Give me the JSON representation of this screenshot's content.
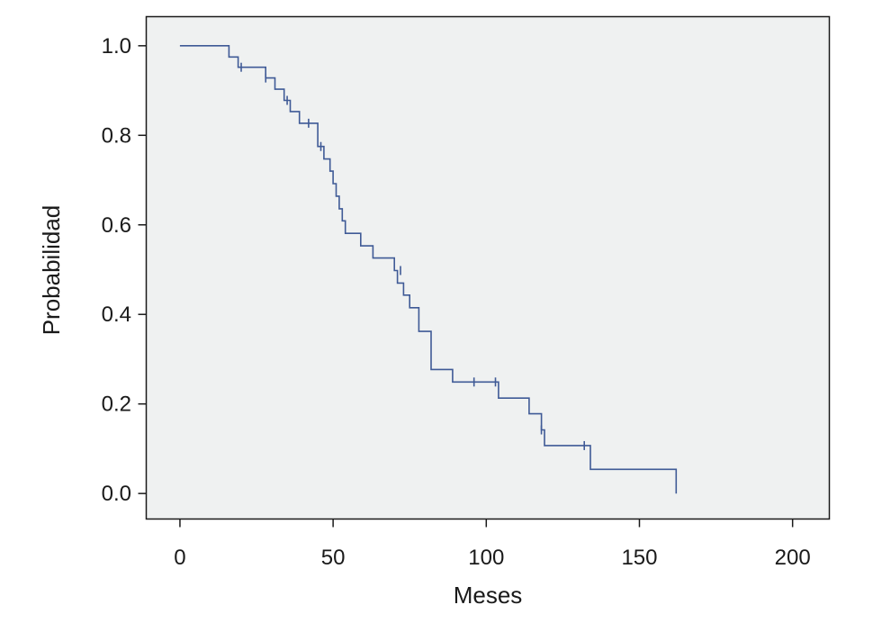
{
  "chart_data": {
    "type": "line",
    "title": "",
    "xlabel": "Meses",
    "ylabel": "Probabilidad",
    "xlim": [
      -11,
      212
    ],
    "ylim": [
      -0.057,
      1.065
    ],
    "xticks": [
      0,
      50,
      100,
      150,
      200
    ],
    "xtick_labels": [
      "0",
      "50",
      "100",
      "150",
      "200"
    ],
    "yticks": [
      0.0,
      0.2,
      0.4,
      0.6,
      0.8,
      1.0
    ],
    "ytick_labels": [
      "0.0",
      "0.2",
      "0.4",
      "0.6",
      "0.8",
      "1.0"
    ],
    "grid": false,
    "colors": {
      "plot_bg": "#eff1f1",
      "line": "#3f5a96",
      "axis": "#1a1a1a"
    },
    "series": [
      {
        "steps": [
          [
            0,
            1.0
          ],
          [
            16,
            0.975
          ],
          [
            19,
            0.952
          ],
          [
            28,
            0.928
          ],
          [
            31,
            0.903
          ],
          [
            34,
            0.878
          ],
          [
            36,
            0.853
          ],
          [
            39,
            0.827
          ],
          [
            45,
            0.775
          ],
          [
            47,
            0.747
          ],
          [
            49,
            0.72
          ],
          [
            50,
            0.692
          ],
          [
            51,
            0.664
          ],
          [
            52,
            0.636
          ],
          [
            53,
            0.609
          ],
          [
            54,
            0.581
          ],
          [
            59,
            0.553
          ],
          [
            63,
            0.526
          ],
          [
            70,
            0.498
          ],
          [
            71,
            0.47
          ],
          [
            73,
            0.443
          ],
          [
            75,
            0.415
          ],
          [
            78,
            0.362
          ],
          [
            82,
            0.277
          ],
          [
            89,
            0.249
          ],
          [
            104,
            0.213
          ],
          [
            114,
            0.178
          ],
          [
            118,
            0.142
          ],
          [
            119,
            0.107
          ],
          [
            134,
            0.054
          ],
          [
            162,
            0.0
          ]
        ],
        "censored": [
          [
            20,
            0.952
          ],
          [
            28,
            0.928
          ],
          [
            35,
            0.878
          ],
          [
            42,
            0.827
          ],
          [
            46,
            0.775
          ],
          [
            72,
            0.498
          ],
          [
            96,
            0.249
          ],
          [
            103,
            0.249
          ],
          [
            118,
            0.142
          ],
          [
            132,
            0.107
          ]
        ]
      }
    ]
  }
}
